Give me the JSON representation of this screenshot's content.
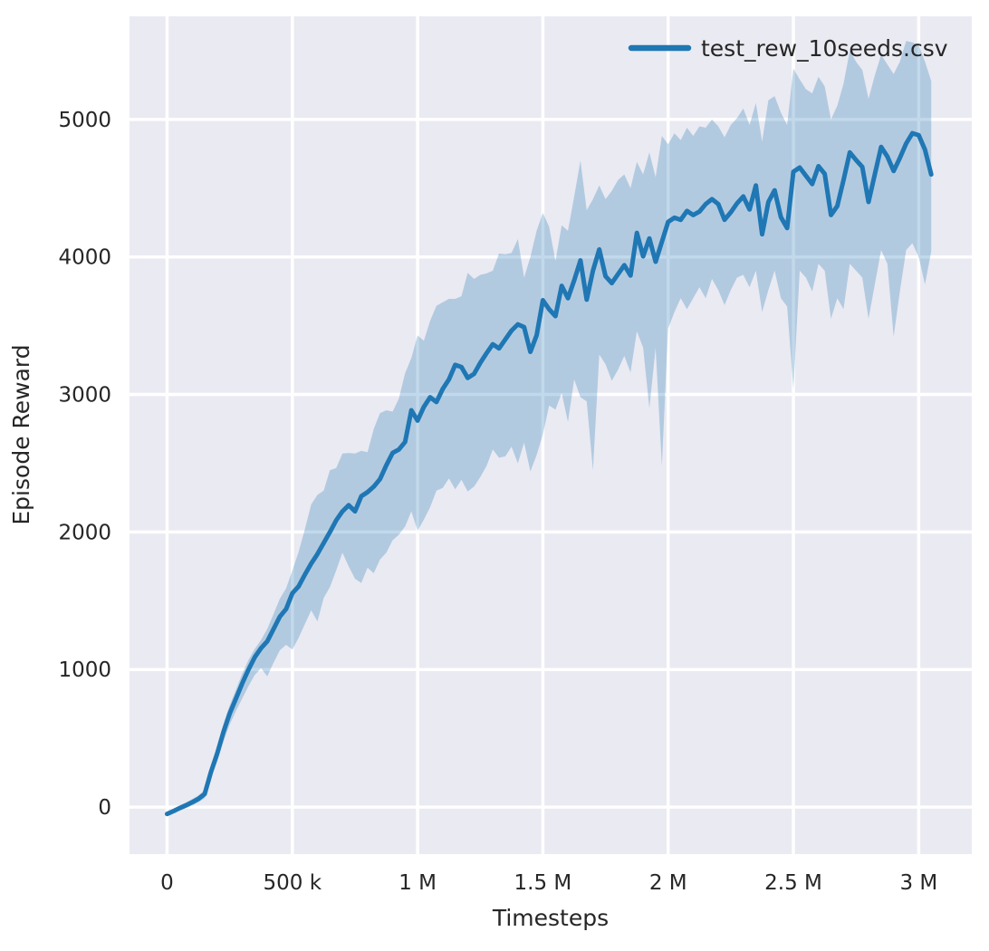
{
  "chart_data": {
    "type": "line",
    "title": "",
    "xlabel": "Timesteps",
    "ylabel": "Episode Reward",
    "grid": true,
    "grid_color": "#ffffff",
    "background": "#eaeaf2",
    "text_color": "#262626",
    "legend_position": "upper right",
    "xlim": [
      -150000,
      3212000
    ],
    "ylim": [
      -342,
      5750
    ],
    "xticks": {
      "values": [
        0,
        500000,
        1000000,
        1500000,
        2000000,
        2500000,
        3000000
      ],
      "labels": [
        "0",
        "500 k",
        "1 M",
        "1.5 M",
        "2 M",
        "2.5 M",
        "3 M"
      ]
    },
    "yticks": {
      "values": [
        0,
        1000,
        2000,
        3000,
        4000,
        5000
      ],
      "labels": [
        "0",
        "1000",
        "2000",
        "3000",
        "4000",
        "5000"
      ]
    },
    "series": [
      {
        "name": "test_rew_10seeds.csv",
        "color": "#1f77b4",
        "band_color": "rgba(31,119,180,0.28)",
        "x_unit_multiplier": 1000,
        "x_values_k": [
          0,
          25,
          50,
          75,
          100,
          125,
          150,
          175,
          200,
          225,
          250,
          275,
          300,
          325,
          350,
          375,
          400,
          425,
          450,
          475,
          500,
          525,
          550,
          575,
          600,
          625,
          650,
          675,
          700,
          725,
          750,
          775,
          800,
          825,
          850,
          875,
          900,
          925,
          950,
          975,
          1000,
          1025,
          1050,
          1075,
          1100,
          1125,
          1150,
          1175,
          1200,
          1225,
          1250,
          1275,
          1300,
          1325,
          1350,
          1375,
          1400,
          1425,
          1450,
          1475,
          1500,
          1525,
          1550,
          1575,
          1600,
          1625,
          1650,
          1675,
          1700,
          1725,
          1750,
          1775,
          1800,
          1825,
          1850,
          1875,
          1900,
          1925,
          1950,
          1975,
          2000,
          2025,
          2050,
          2075,
          2100,
          2125,
          2150,
          2175,
          2200,
          2225,
          2250,
          2275,
          2300,
          2325,
          2350,
          2375,
          2400,
          2425,
          2450,
          2475,
          2500,
          2525,
          2550,
          2575,
          2600,
          2625,
          2650,
          2675,
          2700,
          2725,
          2750,
          2775,
          2800,
          2825,
          2850,
          2875,
          2900,
          2925,
          2950,
          2975,
          3000,
          3025,
          3050
        ],
        "mean": [
          -50,
          -30,
          -8,
          12,
          35,
          60,
          95,
          255,
          390,
          545,
          680,
          790,
          900,
          1000,
          1090,
          1155,
          1205,
          1295,
          1385,
          1440,
          1555,
          1605,
          1690,
          1770,
          1840,
          1920,
          2000,
          2085,
          2150,
          2195,
          2150,
          2260,
          2290,
          2330,
          2385,
          2485,
          2575,
          2600,
          2655,
          2885,
          2810,
          2910,
          2980,
          2945,
          3040,
          3110,
          3215,
          3200,
          3120,
          3150,
          3230,
          3300,
          3365,
          3335,
          3400,
          3465,
          3510,
          3490,
          3310,
          3430,
          3685,
          3620,
          3570,
          3790,
          3700,
          3830,
          3975,
          3690,
          3900,
          4055,
          3860,
          3810,
          3875,
          3940,
          3865,
          4175,
          4005,
          4135,
          3965,
          4110,
          4255,
          4285,
          4270,
          4335,
          4305,
          4330,
          4385,
          4420,
          4385,
          4270,
          4325,
          4390,
          4440,
          4345,
          4520,
          4165,
          4400,
          4485,
          4290,
          4210,
          4620,
          4650,
          4590,
          4530,
          4660,
          4605,
          4305,
          4370,
          4560,
          4760,
          4705,
          4655,
          4400,
          4600,
          4800,
          4730,
          4625,
          4720,
          4825,
          4900,
          4885,
          4780,
          4600
        ],
        "band_upper": [
          -35,
          -12,
          12,
          33,
          58,
          85,
          125,
          295,
          440,
          605,
          740,
          855,
          970,
          1070,
          1150,
          1215,
          1295,
          1405,
          1515,
          1590,
          1720,
          1855,
          2020,
          2200,
          2270,
          2300,
          2450,
          2465,
          2570,
          2575,
          2570,
          2590,
          2580,
          2750,
          2865,
          2885,
          2875,
          2970,
          3155,
          3265,
          3430,
          3390,
          3535,
          3645,
          3670,
          3695,
          3695,
          3715,
          3885,
          3840,
          3870,
          3880,
          3900,
          4025,
          4020,
          4030,
          4130,
          3850,
          4000,
          4190,
          4320,
          4220,
          3970,
          4230,
          4190,
          4440,
          4700,
          4340,
          4420,
          4520,
          4420,
          4480,
          4560,
          4600,
          4500,
          4690,
          4600,
          4760,
          4580,
          4880,
          4820,
          4900,
          4850,
          4940,
          4880,
          4950,
          4940,
          5000,
          4950,
          4870,
          4960,
          5010,
          5080,
          4960,
          5120,
          4840,
          5140,
          5170,
          5050,
          4960,
          5370,
          5290,
          5220,
          5190,
          5310,
          5240,
          5000,
          5100,
          5260,
          5500,
          5420,
          5360,
          5150,
          5320,
          5470,
          5400,
          5330,
          5420,
          5570,
          5560,
          5540,
          5420,
          5280
        ],
        "band_lower": [
          -60,
          -45,
          -25,
          -8,
          12,
          35,
          65,
          215,
          330,
          475,
          600,
          700,
          790,
          880,
          960,
          1010,
          950,
          1050,
          1140,
          1180,
          1145,
          1230,
          1330,
          1430,
          1350,
          1520,
          1600,
          1720,
          1850,
          1750,
          1660,
          1630,
          1740,
          1700,
          1800,
          1850,
          1940,
          1980,
          2040,
          2150,
          2010,
          2090,
          2180,
          2300,
          2320,
          2390,
          2310,
          2380,
          2295,
          2330,
          2400,
          2480,
          2600,
          2540,
          2550,
          2620,
          2500,
          2650,
          2440,
          2560,
          2710,
          2920,
          2890,
          3010,
          2800,
          3110,
          2980,
          2950,
          2450,
          3290,
          3220,
          3100,
          3180,
          3280,
          3160,
          3460,
          3340,
          2900,
          3340,
          2480,
          3480,
          3600,
          3700,
          3620,
          3700,
          3780,
          3700,
          3840,
          3760,
          3650,
          3760,
          3850,
          3870,
          3780,
          3900,
          3600,
          3760,
          3900,
          3700,
          3640,
          3040,
          3900,
          3850,
          3750,
          3950,
          3900,
          3550,
          3700,
          3620,
          3950,
          3900,
          3850,
          3550,
          3800,
          4050,
          3950,
          3420,
          3750,
          4050,
          4100,
          4000,
          3800,
          4040
        ]
      }
    ]
  }
}
